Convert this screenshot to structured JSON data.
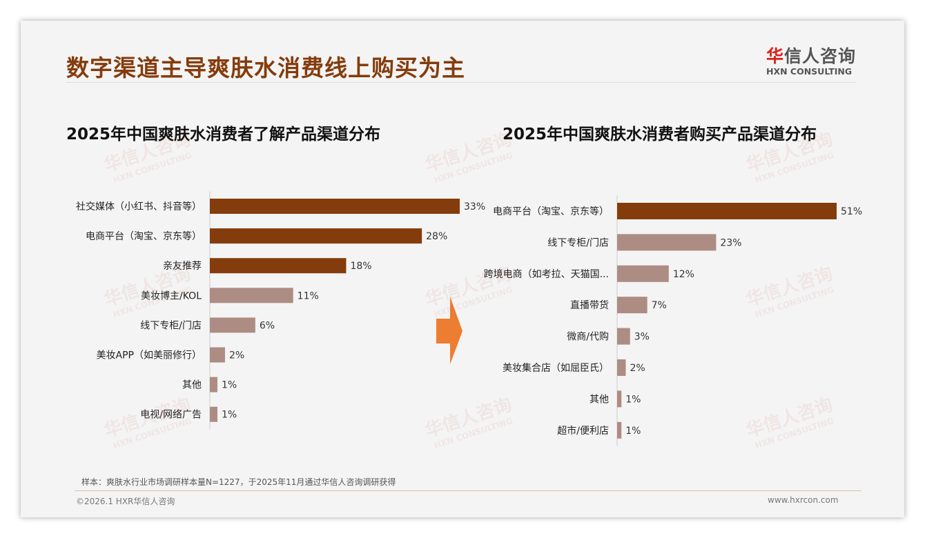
{
  "title": "数字渠道主导爽肤水消费线上购买为主",
  "brand": {
    "cn_first": "华",
    "cn_rest": "信人咨询",
    "en": "HXN CONSULTING"
  },
  "footer": {
    "note": "样本：爽肤水行业市场调研样本量N=1227，于2025年11月通过华信人咨询调研获得",
    "copyright": "©2026.1 HXR华信人咨询",
    "url": "www.hxrcon.com"
  },
  "colors": {
    "dark": "#843c0c",
    "light": "#ad8c84",
    "arrow": "#ed7d31"
  },
  "chart_data": [
    {
      "type": "bar",
      "orientation": "horizontal",
      "title": "2025年中国爽肤水消费者了解产品渠道分布",
      "unit": "%",
      "xlim": [
        0,
        33
      ],
      "categories": [
        "社交媒体（小红书、抖音等）",
        "电商平台（淘宝、京东等）",
        "亲友推荐",
        "美妆博主/KOL",
        "线下专柜/门店",
        "美妆APP（如美丽修行）",
        "其他",
        "电视/网络广告"
      ],
      "values": [
        33,
        28,
        18,
        11,
        6,
        2,
        1,
        1
      ],
      "labels": [
        "33%",
        "28%",
        "18%",
        "11%",
        "6%",
        "2%",
        "1%",
        "1%"
      ],
      "highlight_top": 3
    },
    {
      "type": "bar",
      "orientation": "horizontal",
      "title": "2025年中国爽肤水消费者购买产品渠道分布",
      "unit": "%",
      "xlim": [
        0,
        51
      ],
      "categories": [
        "电商平台（淘宝、京东等）",
        "线下专柜/门店",
        "跨境电商（如考拉、天猫国...",
        "直播带货",
        "微商/代购",
        "美妆集合店（如屈臣氏）",
        "其他",
        "超市/便利店"
      ],
      "values": [
        51,
        23,
        12,
        7,
        3,
        2,
        1,
        1
      ],
      "labels": [
        "51%",
        "23%",
        "12%",
        "7%",
        "3%",
        "2%",
        "1%",
        "1%"
      ],
      "highlight_top": 1
    }
  ]
}
